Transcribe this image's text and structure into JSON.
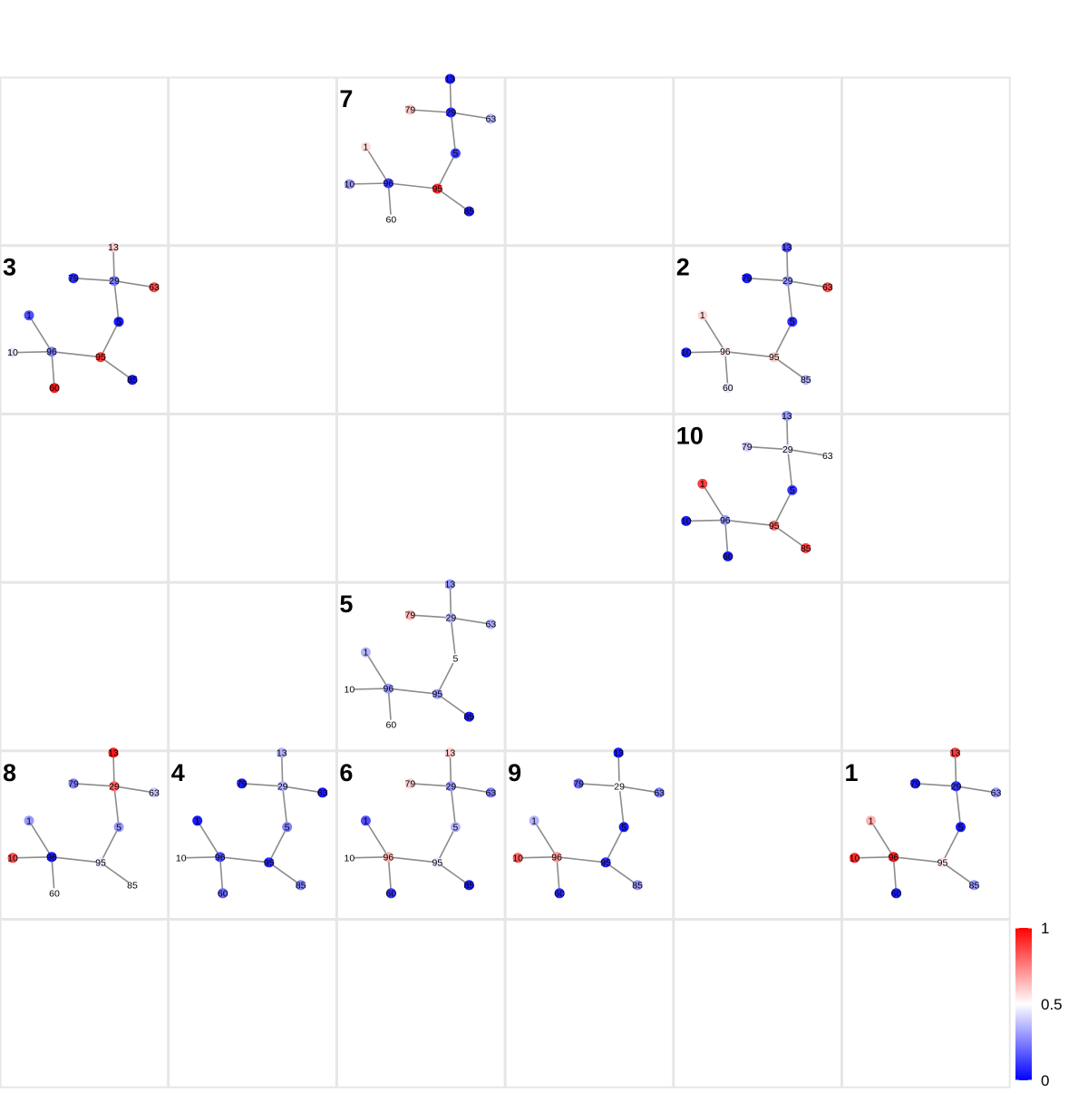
{
  "grid": {
    "columns": 6,
    "rows": 6
  },
  "node_ids": [
    "79",
    "13",
    "63",
    "29",
    "5",
    "1",
    "10",
    "96",
    "60",
    "95",
    "85"
  ],
  "edges": [
    [
      "79",
      "29"
    ],
    [
      "13",
      "29"
    ],
    [
      "63",
      "29"
    ],
    [
      "29",
      "5"
    ],
    [
      "5",
      "95"
    ],
    [
      "95",
      "85"
    ],
    [
      "95",
      "96"
    ],
    [
      "96",
      "1"
    ],
    [
      "96",
      "10"
    ],
    [
      "96",
      "60"
    ]
  ],
  "color_scale": {
    "low": "#0000ff",
    "mid": "#ffffff",
    "high": "#ff0000",
    "min": 0,
    "max": 1
  },
  "legend": {
    "ticks": [
      {
        "value": 1,
        "label": "1"
      },
      {
        "value": 0.5,
        "label": "0.5"
      },
      {
        "value": 0,
        "label": "0"
      }
    ]
  },
  "panels": [
    {
      "label": "7",
      "col": 2,
      "row": 0,
      "values": {
        "79": 0.62,
        "13": 0.05,
        "63": 0.35,
        "29": 0.08,
        "5": 0.12,
        "1": 0.57,
        "10": 0.3,
        "96": 0.12,
        "60": 0.5,
        "95": 0.92,
        "85": 0.05
      }
    },
    {
      "label": "3",
      "col": 0,
      "row": 1,
      "values": {
        "79": 0.08,
        "13": 0.6,
        "63": 0.85,
        "29": 0.25,
        "5": 0.05,
        "1": 0.15,
        "10": 0.45,
        "96": 0.25,
        "60": 0.95,
        "95": 0.9,
        "85": 0.05
      }
    },
    {
      "label": "2",
      "col": 4,
      "row": 1,
      "values": {
        "79": 0.05,
        "13": 0.15,
        "63": 0.85,
        "29": 0.3,
        "5": 0.08,
        "1": 0.58,
        "10": 0.05,
        "96": 0.55,
        "60": 0.45,
        "95": 0.6,
        "85": 0.35
      }
    },
    {
      "label": "10",
      "col": 4,
      "row": 2,
      "values": {
        "79": 0.4,
        "13": 0.3,
        "63": 0.5,
        "29": 0.45,
        "5": 0.1,
        "1": 0.88,
        "10": 0.05,
        "96": 0.3,
        "60": 0.05,
        "95": 0.8,
        "85": 0.88
      }
    },
    {
      "label": "5",
      "col": 2,
      "row": 3,
      "values": {
        "79": 0.65,
        "13": 0.3,
        "63": 0.35,
        "29": 0.35,
        "5": 0.5,
        "1": 0.35,
        "10": 0.5,
        "96": 0.3,
        "60": 0.5,
        "95": 0.3,
        "85": 0.05
      }
    },
    {
      "label": "8",
      "col": 0,
      "row": 4,
      "values": {
        "79": 0.25,
        "13": 0.95,
        "63": 0.4,
        "29": 0.8,
        "5": 0.3,
        "1": 0.3,
        "10": 0.85,
        "96": 0.05,
        "60": 0.5,
        "95": 0.45,
        "85": 0.5
      }
    },
    {
      "label": "4",
      "col": 1,
      "row": 4,
      "values": {
        "79": 0.05,
        "13": 0.35,
        "63": 0.05,
        "29": 0.35,
        "5": 0.25,
        "1": 0.05,
        "10": 0.5,
        "96": 0.15,
        "60": 0.2,
        "95": 0.08,
        "85": 0.25
      }
    },
    {
      "label": "6",
      "col": 2,
      "row": 4,
      "values": {
        "79": 0.6,
        "13": 0.6,
        "63": 0.25,
        "29": 0.3,
        "5": 0.35,
        "1": 0.15,
        "10": 0.5,
        "96": 0.65,
        "60": 0.1,
        "95": 0.45,
        "85": 0.05
      }
    },
    {
      "label": "9",
      "col": 3,
      "row": 4,
      "values": {
        "79": 0.2,
        "13": 0.05,
        "63": 0.25,
        "29": 0.5,
        "5": 0.05,
        "1": 0.35,
        "10": 0.82,
        "96": 0.7,
        "60": 0.08,
        "95": 0.08,
        "85": 0.3
      }
    },
    {
      "label": "1",
      "col": 5,
      "row": 4,
      "values": {
        "79": 0.05,
        "13": 0.88,
        "63": 0.3,
        "29": 0.1,
        "5": 0.05,
        "1": 0.65,
        "10": 0.92,
        "96": 0.95,
        "60": 0.05,
        "95": 0.55,
        "85": 0.3
      }
    }
  ]
}
